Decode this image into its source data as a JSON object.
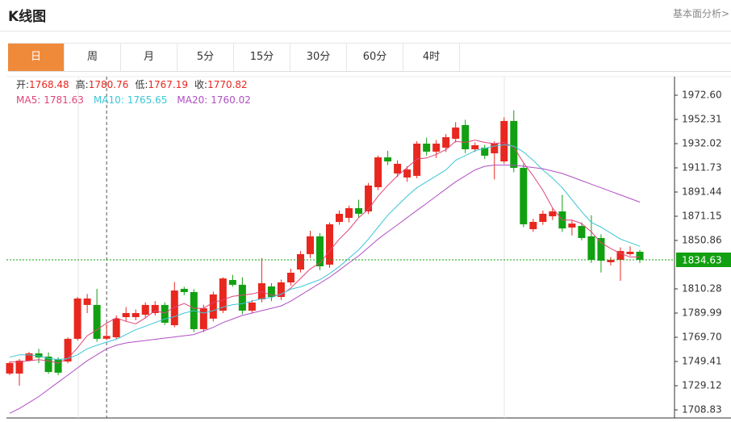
{
  "header": {
    "title": "K线图",
    "link": "基本面分析>"
  },
  "tabs": {
    "items": [
      "日",
      "周",
      "月",
      "5分",
      "15分",
      "30分",
      "60分",
      "4时"
    ],
    "active": 0
  },
  "chart_data": {
    "type": "candlestick",
    "ohlc_labels": [
      "开:",
      "高:",
      "低:",
      "收:"
    ],
    "crosshair_index": 10,
    "up_color": "#e8271f",
    "down_color": "#11a011",
    "open": [
      1739.3,
      1739.3,
      1750.1,
      1756.2,
      1753.5,
      1751.5,
      1749.4,
      1768.4,
      1796.8,
      1796.8,
      1768.48,
      1769.7,
      1786.6,
      1786.6,
      1788.6,
      1790,
      1796.8,
      1779.8,
      1810.3,
      1807.6,
      1776.5,
      1785.3,
      1792,
      1817.7,
      1813.7,
      1792,
      1801.5,
      1812.3,
      1803.5,
      1815.7,
      1826.5,
      1839.4,
      1854.3,
      1830.6,
      1866.4,
      1869.8,
      1877.9,
      1875.2,
      1895.5,
      1920.5,
      1907,
      1903.6,
      1905,
      1932,
      1925.3,
      1928.6,
      1936.1,
      1947.6,
      1927.3,
      1928.6,
      1923.9,
      1917.1,
      1951,
      1911.7,
      1860.3,
      1866.4,
      1871.1,
      1875.2,
      1861.7,
      1863,
      1854.3,
      1852.9,
      1832.6,
      1834.6,
      1839.4,
      1841.4
    ],
    "high": [
      1749.4,
      1751.5,
      1757.5,
      1760,
      1757,
      1753,
      1769.7,
      1803.5,
      1806,
      1810.3,
      1780.76,
      1788,
      1795,
      1793,
      1799,
      1800,
      1799,
      1816,
      1812,
      1810,
      1797,
      1808,
      1820,
      1822,
      1820,
      1801,
      1836,
      1815,
      1818,
      1827,
      1842,
      1859,
      1857,
      1866,
      1876,
      1880,
      1885,
      1899,
      1922,
      1926,
      1918,
      1913,
      1934,
      1937,
      1935,
      1940,
      1950,
      1952,
      1933,
      1931,
      1934,
      1954,
      1960,
      1915,
      1869,
      1876,
      1878,
      1889,
      1868,
      1866,
      1872,
      1856,
      1837,
      1845,
      1846,
      1843
    ],
    "low": [
      1737.9,
      1729.1,
      1749.4,
      1748,
      1739,
      1737.9,
      1748,
      1767,
      1790,
      1766,
      1767.19,
      1768,
      1783,
      1784,
      1786,
      1788,
      1780,
      1778,
      1805,
      1774,
      1774,
      1783,
      1790,
      1812,
      1789,
      1790,
      1799,
      1800,
      1801,
      1813,
      1824,
      1836,
      1826,
      1828,
      1864,
      1866,
      1870,
      1873,
      1893,
      1914,
      1904,
      1900,
      1903,
      1922,
      1920,
      1925,
      1933,
      1924,
      1925,
      1919,
      1902,
      1915,
      1908,
      1862,
      1858,
      1864,
      1868,
      1858,
      1855,
      1851,
      1832,
      1824,
      1830,
      1817,
      1838,
      1832
    ],
    "close": [
      1748.1,
      1750.1,
      1756.2,
      1752.8,
      1740.6,
      1740,
      1768.4,
      1802.2,
      1802.2,
      1768.4,
      1770.82,
      1785.3,
      1790,
      1790,
      1796.8,
      1796.8,
      1781.9,
      1808.9,
      1807.6,
      1776.5,
      1794,
      1805.6,
      1819,
      1813.7,
      1792,
      1798.8,
      1815,
      1803.5,
      1815.7,
      1823.8,
      1839.4,
      1854.3,
      1829.2,
      1864.4,
      1873.2,
      1877.9,
      1873.2,
      1896.9,
      1920.5,
      1917.1,
      1915.1,
      1910.4,
      1932,
      1925.3,
      1932,
      1937.4,
      1945.5,
      1927.3,
      1930.7,
      1921.9,
      1932,
      1951,
      1911.7,
      1864.4,
      1866.4,
      1873.2,
      1875.2,
      1860.9,
      1865,
      1852.9,
      1834.6,
      1833.9,
      1834.6,
      1842,
      1841.4,
      1834.63
    ],
    "ma": [
      {
        "name": "MA5:",
        "color": "#e0457b",
        "values": [
          1749,
          1749,
          1750,
          1751,
          1750,
          1748,
          1752,
          1761,
          1771,
          1776,
          1781.63,
          1786,
          1783,
          1781,
          1786,
          1792,
          1790,
          1795,
          1798,
          1794,
          1794,
          1799,
          1801,
          1804,
          1805,
          1806,
          1808,
          1805,
          1805,
          1811,
          1819,
          1827,
          1832,
          1842,
          1852,
          1860,
          1870,
          1877,
          1888,
          1897,
          1905,
          1912,
          1919,
          1920,
          1923,
          1927,
          1934,
          1933,
          1935,
          1933,
          1932,
          1933,
          1929,
          1916,
          1905,
          1893,
          1878,
          1868,
          1868,
          1865,
          1858,
          1849,
          1844,
          1840,
          1837,
          1837
        ]
      },
      {
        "name": "MA10:",
        "color": "#3cc6d8",
        "values": [
          1753,
          1755,
          1755,
          1754,
          1752,
          1751,
          1752,
          1755,
          1760,
          1763,
          1765.65,
          1768,
          1772,
          1776,
          1779,
          1782,
          1785,
          1787,
          1790,
          1792,
          1790,
          1792,
          1795,
          1797,
          1798,
          1800,
          1802,
          1803,
          1806,
          1810,
          1812,
          1815,
          1818,
          1823,
          1829,
          1836,
          1843,
          1852,
          1862,
          1872,
          1880,
          1888,
          1895,
          1900,
          1905,
          1910,
          1918,
          1922,
          1926,
          1928,
          1930,
          1931,
          1930,
          1925,
          1918,
          1910,
          1903,
          1895,
          1885,
          1875,
          1866,
          1862,
          1857,
          1852,
          1849,
          1846
        ]
      },
      {
        "name": "MA20:",
        "color": "#b04fc4",
        "values": [
          1706,
          1710,
          1715,
          1720,
          1726,
          1732,
          1738,
          1744,
          1750,
          1755,
          1760.02,
          1763,
          1765,
          1766,
          1767,
          1768,
          1769,
          1770,
          1771,
          1772,
          1775,
          1778,
          1782,
          1785,
          1788,
          1790,
          1792,
          1794,
          1796,
          1800,
          1805,
          1810,
          1815,
          1820,
          1826,
          1832,
          1838,
          1845,
          1852,
          1858,
          1864,
          1870,
          1876,
          1882,
          1888,
          1894,
          1900,
          1905,
          1910,
          1913,
          1914,
          1914,
          1914,
          1913,
          1912,
          1911,
          1909,
          1907,
          1904,
          1901,
          1898,
          1895,
          1892,
          1889,
          1886,
          1883
        ]
      }
    ],
    "ylim": [
      1702.07,
      1988.15
    ],
    "yticks": [
      {
        "value": 1972.6,
        "label": "1972.60"
      },
      1952.31,
      1932.02,
      1911.73,
      1891.44,
      1871.15,
      1850.86,
      1810.28,
      1789.99,
      {
        "value": 1769.7,
        "label": "1769.70"
      },
      1749.41,
      1729.12,
      1708.83
    ],
    "last_price_color": "#11a011"
  }
}
